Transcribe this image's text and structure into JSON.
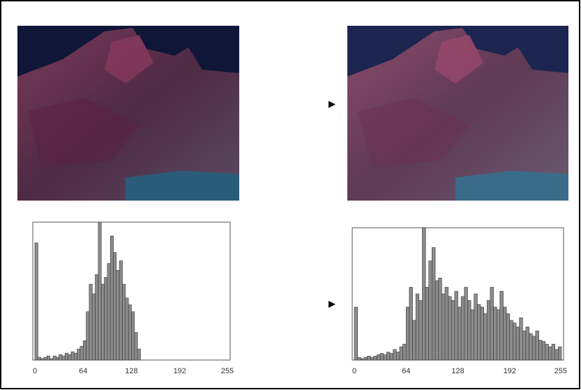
{
  "chart_data": [
    {
      "type": "histogram",
      "bins": [
        0,
        4,
        8,
        12,
        16,
        20,
        24,
        28,
        32,
        36,
        40,
        44,
        48,
        52,
        56,
        60,
        64,
        68,
        72,
        76,
        80,
        84,
        88,
        92,
        96,
        100,
        104,
        108,
        112,
        116,
        120,
        124,
        128,
        132,
        136,
        140,
        144,
        148,
        152,
        156,
        160,
        164,
        168,
        172,
        176,
        180,
        184,
        188,
        192,
        196,
        200,
        204,
        208,
        212,
        216,
        220,
        224,
        228,
        232,
        236,
        240,
        244,
        248,
        252,
        256
      ],
      "values": [
        85,
        2,
        1,
        2,
        3,
        1,
        3,
        2,
        4,
        3,
        5,
        4,
        6,
        5,
        8,
        10,
        14,
        35,
        55,
        48,
        62,
        100,
        55,
        60,
        70,
        90,
        78,
        65,
        72,
        55,
        45,
        40,
        35,
        20,
        8,
        0,
        0,
        0,
        0,
        0,
        0,
        0,
        0,
        0,
        0,
        0,
        0,
        0,
        0,
        0,
        0,
        0,
        0,
        0,
        0,
        0,
        0,
        0,
        0,
        0,
        0,
        0,
        0,
        0
      ],
      "color": "#8c8c8c",
      "xlim": [
        0,
        256
      ],
      "xticks": [
        0,
        64,
        128,
        192,
        255
      ],
      "ylim": [
        0,
        100
      ]
    },
    {
      "type": "histogram",
      "bins": [
        0,
        4,
        8,
        12,
        16,
        20,
        24,
        28,
        32,
        36,
        40,
        44,
        48,
        52,
        56,
        60,
        64,
        68,
        72,
        76,
        80,
        84,
        88,
        92,
        96,
        100,
        104,
        108,
        112,
        116,
        120,
        124,
        128,
        132,
        136,
        140,
        144,
        148,
        152,
        156,
        160,
        164,
        168,
        172,
        176,
        180,
        184,
        188,
        192,
        196,
        200,
        204,
        208,
        212,
        216,
        220,
        224,
        228,
        232,
        236,
        240,
        244,
        248,
        252,
        256
      ],
      "values": [
        40,
        2,
        1,
        2,
        3,
        2,
        3,
        4,
        5,
        4,
        6,
        5,
        8,
        6,
        10,
        12,
        40,
        55,
        30,
        50,
        45,
        100,
        55,
        75,
        85,
        60,
        62,
        50,
        55,
        48,
        45,
        52,
        40,
        48,
        55,
        45,
        38,
        50,
        42,
        40,
        35,
        45,
        55,
        40,
        38,
        52,
        40,
        35,
        30,
        28,
        25,
        32,
        22,
        25,
        20,
        18,
        22,
        15,
        14,
        12,
        10,
        12,
        8,
        10
      ],
      "color": "#8c8c8c",
      "xlim": [
        0,
        256
      ],
      "xticks": [
        0,
        64,
        128,
        192,
        255
      ],
      "ylim": [
        0,
        100
      ]
    }
  ]
}
